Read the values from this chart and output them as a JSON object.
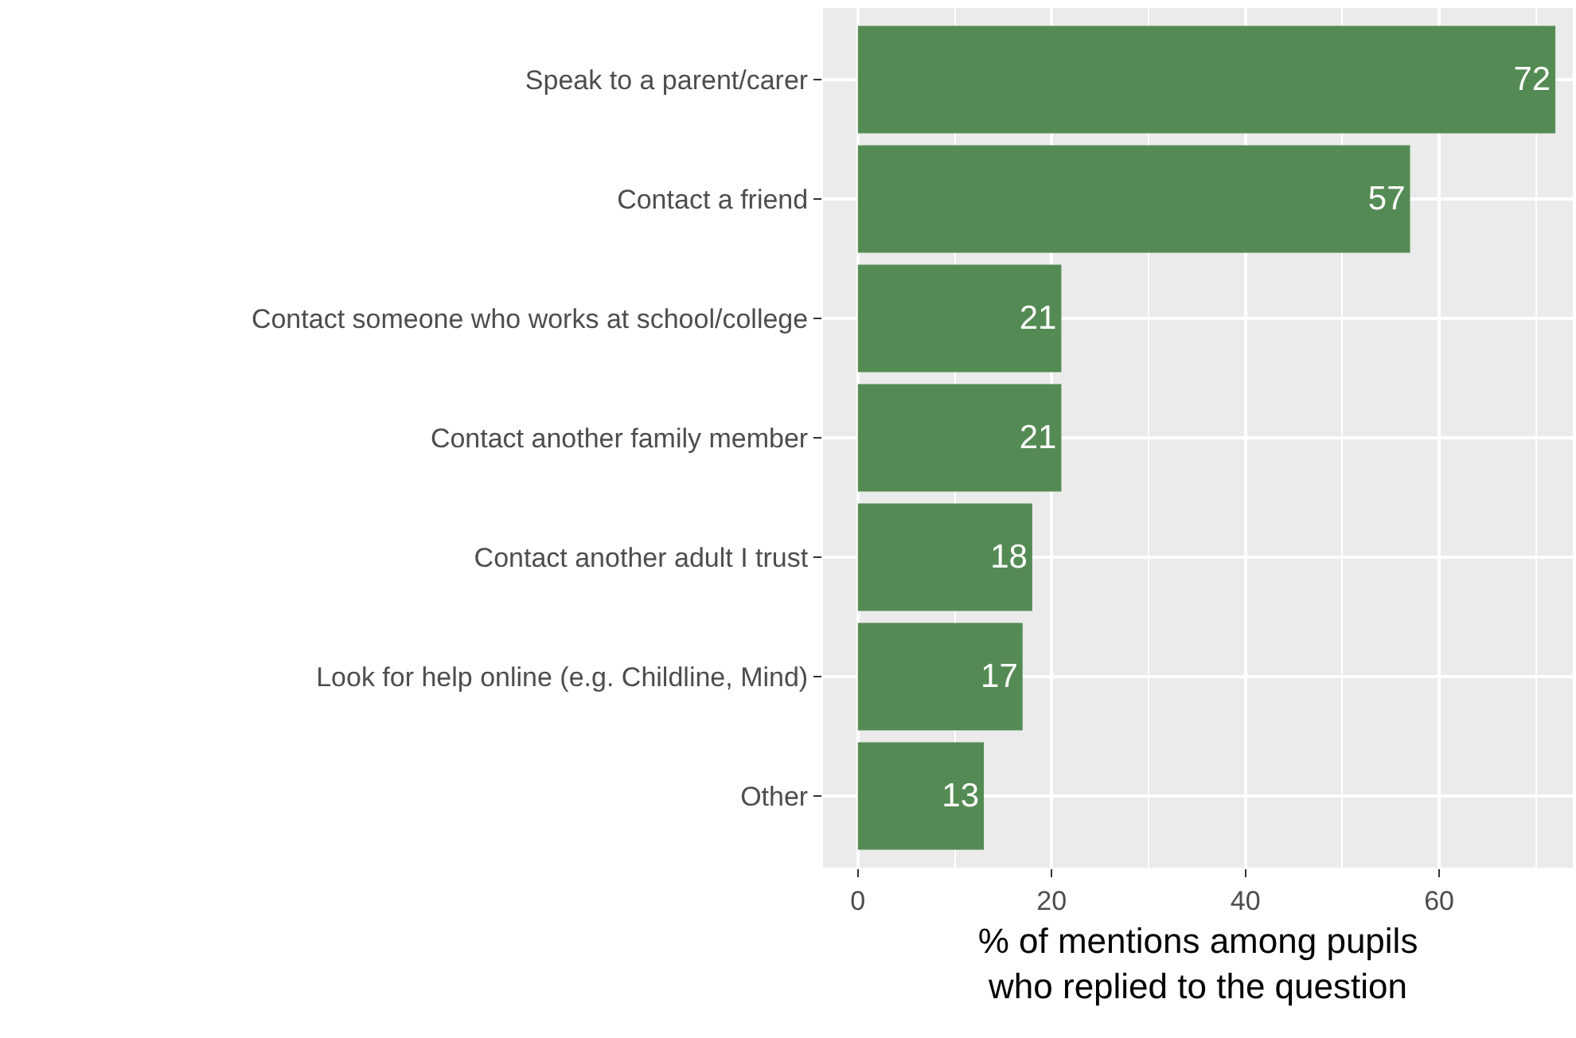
{
  "chart_data": {
    "type": "bar",
    "orientation": "horizontal",
    "categories": [
      "Speak to a parent/carer",
      "Contact a friend",
      "Contact someone who works at school/college",
      "Contact another family member",
      "Contact another adult I trust",
      "Look for help online (e.g. Childline, Mind)",
      "Other"
    ],
    "values": [
      72,
      57,
      21,
      21,
      18,
      17,
      13
    ],
    "color": "#548b54",
    "data_labels": true,
    "xlabel": "% of mentions among pupils\nwho replied to the question",
    "xlim": [
      -3.6,
      73.8
    ],
    "xticks": [
      0,
      20,
      40,
      60
    ],
    "grid": true
  }
}
